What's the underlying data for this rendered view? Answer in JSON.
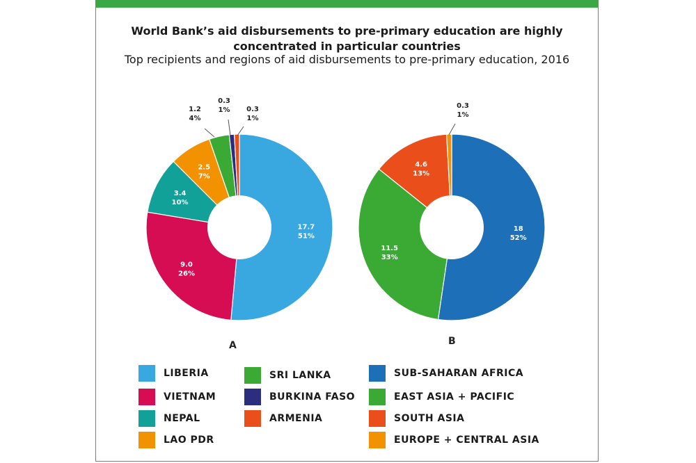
{
  "title": "World Bank’s aid disbursements to pre-primary education are highly concentrated in particular countries",
  "subtitle": "Top recipients and regions of aid disbursements to pre-primary education, 2016",
  "chart_data": [
    {
      "type": "pie",
      "label": "A",
      "slices": [
        {
          "name": "LIBERIA",
          "value": 17.7,
          "percent": "51%",
          "value_label": "17.7",
          "color": "#3aa8e0"
        },
        {
          "name": "VIETNAM",
          "value": 9.0,
          "percent": "26%",
          "value_label": "9.0",
          "color": "#d60d52"
        },
        {
          "name": "NEPAL",
          "value": 3.4,
          "percent": "10%",
          "value_label": "3.4",
          "color": "#12a198"
        },
        {
          "name": "LAO PDR",
          "value": 2.5,
          "percent": "7%",
          "value_label": "2.5",
          "color": "#f39200"
        },
        {
          "name": "SRI LANKA",
          "value": 1.2,
          "percent": "4%",
          "value_label": "1.2",
          "color": "#3aaa35"
        },
        {
          "name": "BURKINA FASO",
          "value": 0.3,
          "percent": "1%",
          "value_label": "0.3",
          "color": "#2b2e7e"
        },
        {
          "name": "ARMENIA",
          "value": 0.3,
          "percent": "1%",
          "value_label": "0.3",
          "color": "#e94e1b"
        }
      ]
    },
    {
      "type": "pie",
      "label": "B",
      "slices": [
        {
          "name": "SUB-SAHARAN AFRICA",
          "value": 18,
          "percent": "52%",
          "value_label": "18",
          "color": "#1d6fb8"
        },
        {
          "name": "EAST ASIA + PACIFIC",
          "value": 11.5,
          "percent": "33%",
          "value_label": "11.5",
          "color": "#3aaa35"
        },
        {
          "name": "SOUTH ASIA",
          "value": 4.6,
          "percent": "13%",
          "value_label": "4.6",
          "color": "#e94e1b"
        },
        {
          "name": "EUROPE + CENTRAL ASIA",
          "value": 0.3,
          "percent": "1%",
          "value_label": "0.3",
          "color": "#f39200"
        }
      ]
    }
  ]
}
